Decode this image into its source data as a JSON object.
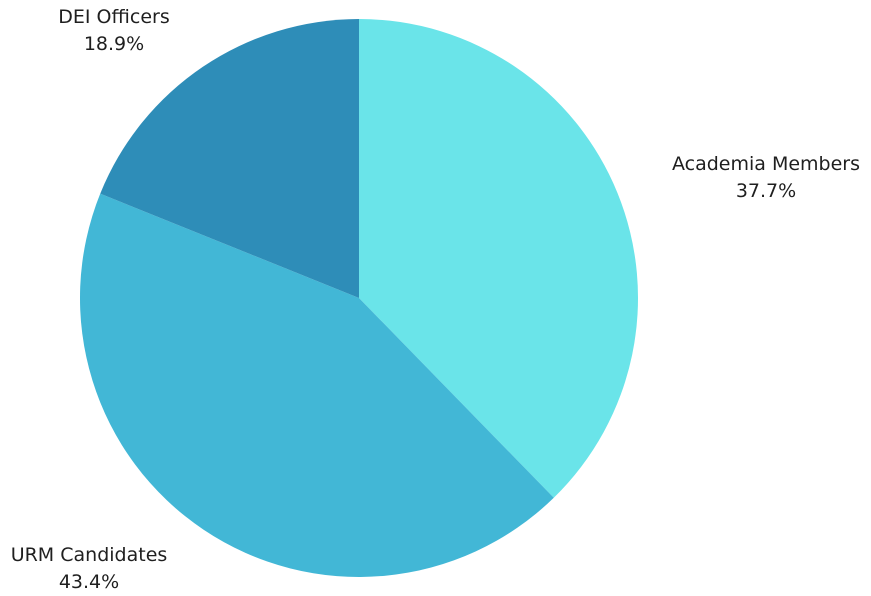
{
  "chart_data": {
    "type": "pie",
    "title": "",
    "start_angle_deg": 0,
    "direction": "clockwise",
    "slices": [
      {
        "label": "Academia Members",
        "value": 37.7,
        "value_label": "37.7%",
        "color": "#6ae4e9"
      },
      {
        "label": "URM Candidates",
        "value": 43.4,
        "value_label": "43.4%",
        "color": "#42b7d6"
      },
      {
        "label": "DEI Officers",
        "value": 18.9,
        "value_label": "18.9%",
        "color": "#2e8db8"
      }
    ]
  }
}
